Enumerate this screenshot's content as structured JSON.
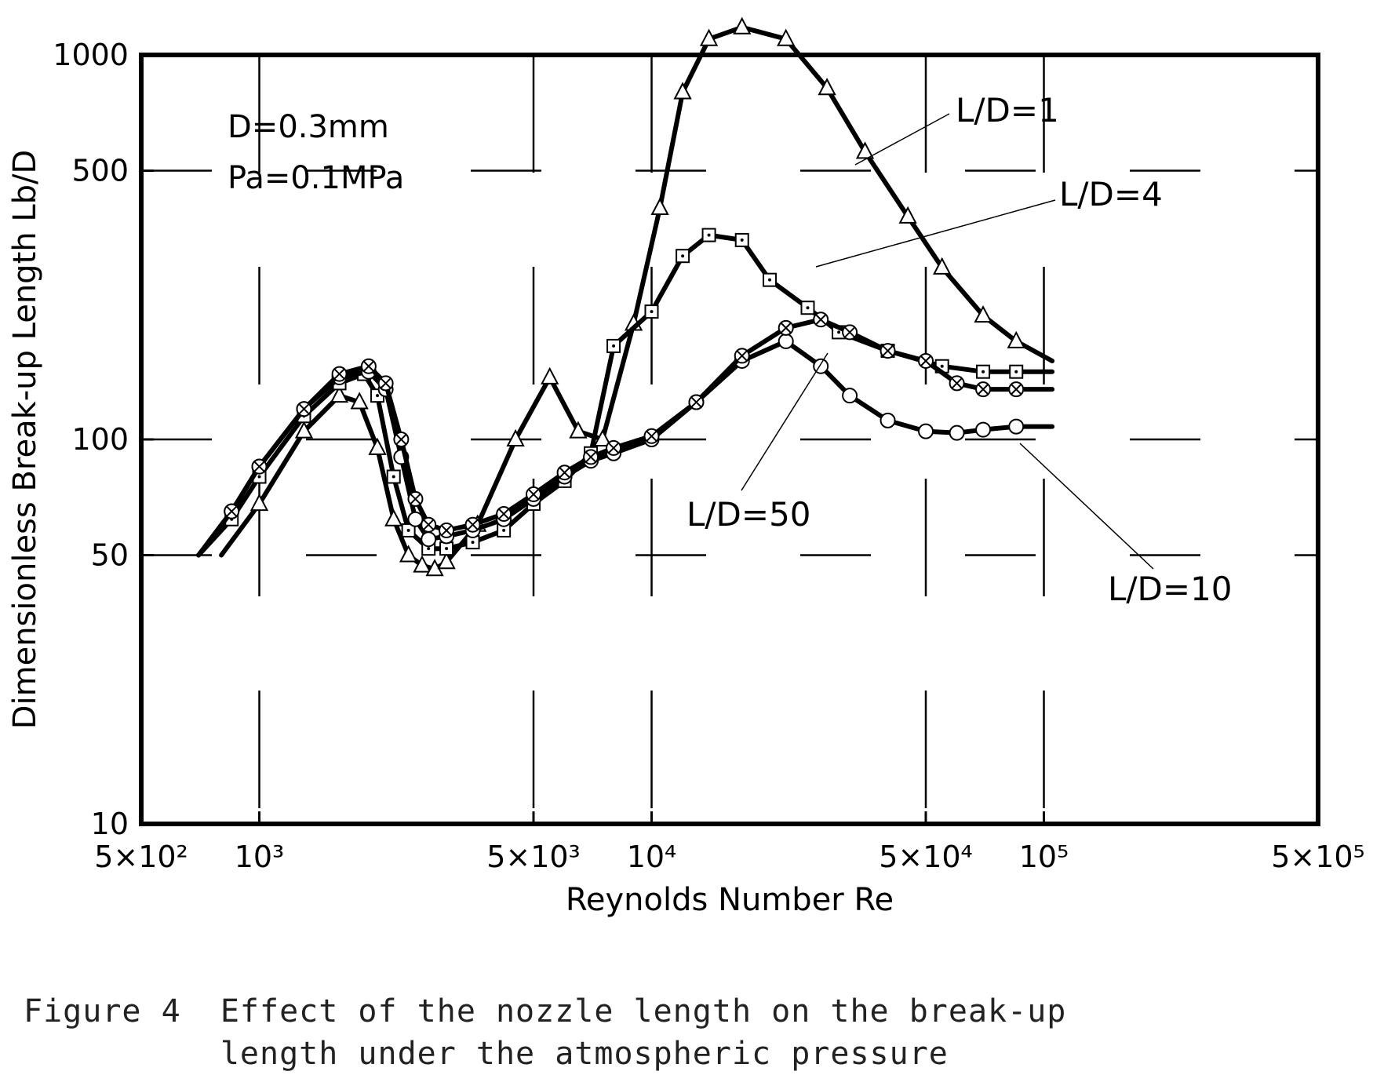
{
  "chart_data": {
    "type": "line",
    "xscale": "log",
    "yscale": "log",
    "xlim": [
      500,
      500000
    ],
    "ylim": [
      10,
      1000
    ],
    "xlabel": "Reynolds Number Re",
    "ylabel": "Dimensionless Break-up Length Lb/D",
    "x_ticks": [
      {
        "value": 500,
        "label": "5×10²"
      },
      {
        "value": 1000,
        "label": "10³"
      },
      {
        "value": 5000,
        "label": "5×10³"
      },
      {
        "value": 10000,
        "label": "10⁴"
      },
      {
        "value": 50000,
        "label": "5×10⁴"
      },
      {
        "value": 100000,
        "label": "10⁵"
      },
      {
        "value": 500000,
        "label": "5×10⁵"
      }
    ],
    "y_ticks": [
      {
        "value": 10,
        "label": "10"
      },
      {
        "value": 50,
        "label": "50"
      },
      {
        "value": 100,
        "label": "100"
      },
      {
        "value": 500,
        "label": "500"
      },
      {
        "value": 1000,
        "label": "1000"
      }
    ],
    "annotations": [
      "D=0.3mm",
      "Pa=0.1MPa"
    ],
    "grid": "partial",
    "series": [
      {
        "name": "L/D=1",
        "marker": "triangle",
        "x": [
          800,
          1000,
          1300,
          1600,
          1800,
          2000,
          2200,
          2400,
          2600,
          2800,
          3000,
          3600,
          4500,
          5500,
          6500,
          7500,
          9000,
          10500,
          12000,
          14000,
          17000,
          22000,
          28000,
          35000,
          45000,
          55000,
          70000,
          85000,
          105000
        ],
        "y": [
          50,
          68,
          105,
          130,
          125,
          95,
          62,
          50,
          47,
          46,
          48,
          60,
          100,
          145,
          105,
          100,
          200,
          400,
          800,
          1100,
          1180,
          1100,
          820,
          560,
          380,
          280,
          210,
          180,
          160
        ]
      },
      {
        "name": "L/D=4",
        "marker": "square-dot",
        "x": [
          700,
          850,
          1000,
          1300,
          1600,
          1850,
          2000,
          2200,
          2400,
          2700,
          3000,
          3500,
          4200,
          5000,
          6000,
          7000,
          8000,
          10000,
          12000,
          14000,
          17000,
          20000,
          25000,
          30000,
          40000,
          55000,
          70000,
          85000,
          105000
        ],
        "y": [
          50,
          62,
          80,
          115,
          140,
          148,
          130,
          80,
          58,
          52,
          52,
          54,
          58,
          68,
          78,
          92,
          175,
          215,
          300,
          340,
          330,
          260,
          220,
          190,
          170,
          155,
          150,
          150,
          150
        ]
      },
      {
        "name": "L/D=10",
        "marker": "circle",
        "x": [
          700,
          850,
          1000,
          1300,
          1600,
          1900,
          2100,
          2300,
          2500,
          2700,
          3000,
          3500,
          4200,
          5000,
          6000,
          7000,
          8000,
          10000,
          13000,
          17000,
          22000,
          27000,
          32000,
          40000,
          50000,
          60000,
          70000,
          85000,
          105000
        ],
        "y": [
          50,
          65,
          85,
          120,
          145,
          150,
          135,
          90,
          62,
          55,
          56,
          58,
          62,
          70,
          80,
          88,
          92,
          100,
          125,
          160,
          180,
          155,
          130,
          112,
          105,
          104,
          106,
          108,
          108
        ]
      },
      {
        "name": "L/D=50",
        "marker": "circle-cross",
        "x": [
          700,
          850,
          1000,
          1300,
          1600,
          1900,
          2100,
          2300,
          2500,
          2700,
          3000,
          3500,
          4200,
          5000,
          6000,
          7000,
          8000,
          10000,
          13000,
          17000,
          22000,
          27000,
          32000,
          40000,
          50000,
          60000,
          70000,
          85000,
          105000
        ],
        "y": [
          50,
          65,
          85,
          120,
          148,
          155,
          140,
          100,
          70,
          60,
          58,
          60,
          64,
          72,
          82,
          90,
          95,
          102,
          125,
          165,
          195,
          205,
          190,
          170,
          160,
          140,
          135,
          135,
          135
        ]
      }
    ]
  },
  "figure_caption": {
    "label": "Figure 4",
    "line1": "Effect of the nozzle length on the break-up",
    "line2": "length under the atmospheric pressure"
  }
}
